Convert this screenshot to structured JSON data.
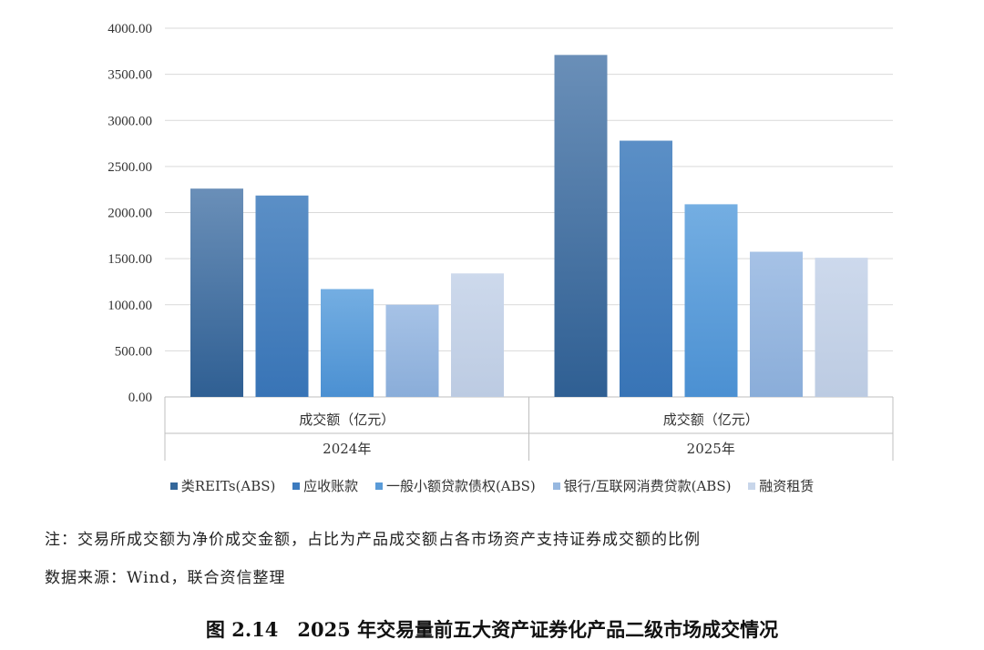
{
  "chart_data": {
    "type": "bar",
    "y_ticks": [
      "0.00",
      "500.00",
      "1000.00",
      "1500.00",
      "2000.00",
      "2500.00",
      "3000.00",
      "3500.00",
      "4000.00"
    ],
    "ylim": [
      0,
      4000
    ],
    "grid": true,
    "legend_position": "bottom",
    "groups": [
      {
        "label": "成交额（亿元）",
        "year": "2024年",
        "values": [
          2260,
          2185,
          1170,
          1000,
          1340
        ]
      },
      {
        "label": "成交额（亿元）",
        "year": "2025年",
        "values": [
          3710,
          2780,
          2090,
          1575,
          1510
        ]
      }
    ],
    "series": [
      {
        "name": "类REITs(ABS)",
        "color": "#34679a"
      },
      {
        "name": "应收账款",
        "color": "#3d7bbf"
      },
      {
        "name": "一般小额贷款债权(ABS)",
        "color": "#5a9bd8"
      },
      {
        "name": "银行/互联网消费贷款(ABS)",
        "color": "#97b8e0"
      },
      {
        "name": "融资租赁",
        "color": "#c8d6ea"
      }
    ]
  },
  "notes": {
    "line1": "注：交易所成交额为净价成交金额，占比为产品成交额占各市场资产支持证券成交额的比例",
    "line2": "数据来源：Wind，联合资信整理"
  },
  "caption": "图 2.14　2025 年交易量前五大资产证券化产品二级市场成交情况"
}
